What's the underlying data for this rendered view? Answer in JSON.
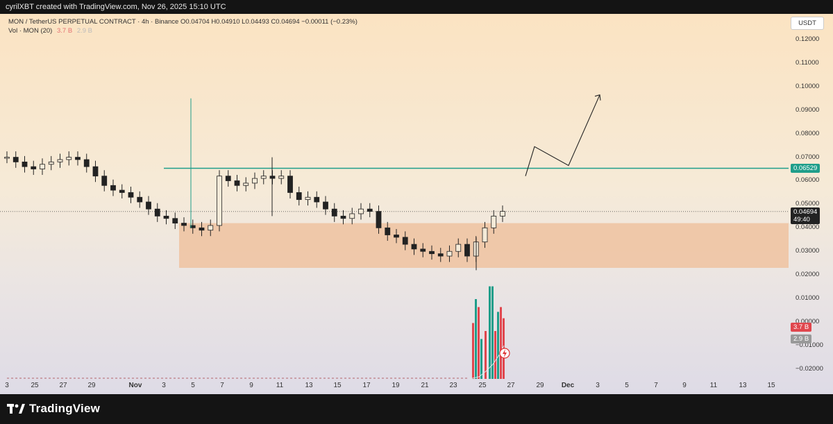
{
  "header": {
    "credit": "cyrilXBT created with TradingView.com, Nov 26, 2025 15:10 UTC"
  },
  "legend": {
    "symbol_line": "MON / TetherUS PERPETUAL CONTRACT · 4h · Binance",
    "ohlc": "O0.04704  H0.04910  L0.04493  C0.04694  −0.00011 (−0.23%)",
    "volume_label": "Vol · MON (20)",
    "volume_value": "3.7 B",
    "volume_ma": "2.9 B"
  },
  "currency_button": "USDT",
  "price_axis": [
    "0.12000",
    "0.11000",
    "0.10000",
    "0.09000",
    "0.08000",
    "0.07000",
    "0.06000",
    "0.05000",
    "0.04000",
    "0.03000",
    "0.02000",
    "0.01000",
    "0.00000",
    "−0.01000",
    "−0.02000"
  ],
  "time_axis": [
    "3",
    "25",
    "27",
    "29",
    "Nov",
    "3",
    "5",
    "7",
    "9",
    "11",
    "13",
    "15",
    "17",
    "19",
    "21",
    "23",
    "25",
    "27",
    "29",
    "Dec",
    "3",
    "5",
    "7",
    "9",
    "11",
    "13",
    "15"
  ],
  "tags": {
    "level": "0.06529",
    "last_price": "0.04694",
    "countdown": "49:40",
    "volume": "3.7 B",
    "volume_ma": "2.9 B"
  },
  "colors": {
    "level_line": "#1f9e8a",
    "zone": "#efc2a0",
    "up": "#1f9e8a",
    "down": "#e0464d",
    "candle_body": "#222222"
  },
  "footer": {
    "brand": "TradingView"
  },
  "chart_data": {
    "type": "candlestick",
    "symbol": "MON / TetherUS PERPETUAL CONTRACT",
    "interval": "4h",
    "exchange": "Binance",
    "ylim": [
      -0.025,
      0.125
    ],
    "resistance_level": 0.06529,
    "support_zone": [
      0.023,
      0.042
    ],
    "last_price": 0.04694,
    "close_series": [
      0.07,
      0.068,
      0.066,
      0.065,
      0.067,
      0.068,
      0.069,
      0.07,
      0.069,
      0.066,
      0.062,
      0.058,
      0.056,
      0.055,
      0.053,
      0.051,
      0.048,
      0.045,
      0.044,
      0.042,
      0.041,
      0.04,
      0.039,
      0.041,
      0.062,
      0.06,
      0.058,
      0.059,
      0.061,
      0.062,
      0.061,
      0.062,
      0.055,
      0.052,
      0.053,
      0.051,
      0.048,
      0.045,
      0.044,
      0.046,
      0.048,
      0.047,
      0.04,
      0.037,
      0.036,
      0.033,
      0.031,
      0.03,
      0.029,
      0.028,
      0.03,
      0.033,
      0.028,
      0.034,
      0.04,
      0.045,
      0.047
    ],
    "volume_spikes_near": "25–26 Nov",
    "projection_path": [
      [
        0.062,
        "Nov 27.5"
      ],
      [
        0.074,
        "Nov 28"
      ],
      [
        0.066,
        "Nov 29.5"
      ],
      [
        0.096,
        "Dec 1"
      ]
    ]
  }
}
